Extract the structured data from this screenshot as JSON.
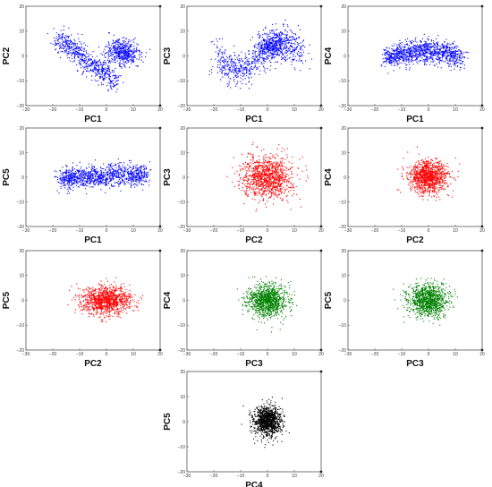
{
  "chart_data": [
    {
      "type": "scatter",
      "xlabel": "PC1",
      "ylabel": "PC2",
      "color": "#0000ff",
      "shape": "two-lobe-diagonal",
      "xlim": [
        -30,
        20
      ],
      "ylim": [
        -20,
        20
      ],
      "xticks": [
        -30,
        -20,
        -10,
        0,
        10,
        20
      ],
      "yticks": [
        -20,
        -10,
        0,
        10,
        20
      ],
      "tick_labels_x": [
        "−30",
        "−20",
        "−10",
        "0",
        "10",
        "20"
      ],
      "tick_labels_y": [
        "−20",
        "−10",
        "0",
        "10",
        "20"
      ]
    },
    {
      "type": "scatter",
      "xlabel": "PC1",
      "ylabel": "PC3",
      "color": "#0000ff",
      "shape": "s-curve",
      "xlim": [
        -30,
        20
      ],
      "ylim": [
        -20,
        20
      ],
      "xticks": [
        -30,
        -20,
        -10,
        0,
        10,
        20
      ],
      "yticks": [
        -20,
        -10,
        0,
        10,
        20
      ],
      "tick_labels_x": [
        "−30",
        "−20",
        "−10",
        "0",
        "10",
        "20"
      ],
      "tick_labels_y": [
        "−20",
        "−10",
        "0",
        "10",
        "20"
      ]
    },
    {
      "type": "scatter",
      "xlabel": "PC1",
      "ylabel": "PC4",
      "color": "#0000ff",
      "shape": "arch",
      "xlim": [
        -30,
        20
      ],
      "ylim": [
        -20,
        20
      ],
      "xticks": [
        -30,
        -20,
        -10,
        0,
        10,
        20
      ],
      "yticks": [
        -20,
        -10,
        0,
        10,
        20
      ],
      "tick_labels_x": [
        "−30",
        "−20",
        "−10",
        "0",
        "10",
        "20"
      ],
      "tick_labels_y": [
        "−20",
        "−10",
        "0",
        "10",
        "20"
      ]
    },
    {
      "type": "scatter",
      "xlabel": "PC1",
      "ylabel": "PC5",
      "color": "#0000ff",
      "shape": "band",
      "xlim": [
        -30,
        20
      ],
      "ylim": [
        -20,
        20
      ],
      "xticks": [
        -30,
        -20,
        -10,
        0,
        10,
        20
      ],
      "yticks": [
        -20,
        -10,
        0,
        10,
        20
      ],
      "tick_labels_x": [
        "−30",
        "−20",
        "−10",
        "0",
        "10",
        "20"
      ],
      "tick_labels_y": [
        "−20",
        "−10",
        "0",
        "10",
        "20"
      ]
    },
    {
      "type": "scatter",
      "xlabel": "PC2",
      "ylabel": "PC3",
      "color": "#ff0000",
      "shape": "blob-large",
      "xlim": [
        -30,
        20
      ],
      "ylim": [
        -20,
        20
      ],
      "xticks": [
        -30,
        -20,
        -10,
        0,
        10,
        20
      ],
      "yticks": [
        -20,
        -10,
        0,
        10,
        20
      ],
      "tick_labels_x": [
        "−30",
        "−20",
        "−10",
        "0",
        "10",
        "20"
      ],
      "tick_labels_y": [
        "−20",
        "−10",
        "0",
        "10",
        "20"
      ]
    },
    {
      "type": "scatter",
      "xlabel": "PC2",
      "ylabel": "PC4",
      "color": "#ff0000",
      "shape": "blob-medium",
      "xlim": [
        -30,
        20
      ],
      "ylim": [
        -20,
        20
      ],
      "xticks": [
        -30,
        -20,
        -10,
        0,
        10,
        20
      ],
      "yticks": [
        -20,
        -10,
        0,
        10,
        20
      ],
      "tick_labels_x": [
        "−30",
        "−20",
        "−10",
        "0",
        "10",
        "20"
      ],
      "tick_labels_y": [
        "−20",
        "−10",
        "0",
        "10",
        "20"
      ]
    },
    {
      "type": "scatter",
      "xlabel": "PC2",
      "ylabel": "PC5",
      "color": "#ff0000",
      "shape": "blob-wide",
      "xlim": [
        -30,
        20
      ],
      "ylim": [
        -20,
        20
      ],
      "xticks": [
        -30,
        -20,
        -10,
        0,
        10,
        20
      ],
      "yticks": [
        -20,
        -10,
        0,
        10,
        20
      ],
      "tick_labels_x": [
        "−30",
        "−20",
        "−10",
        "0",
        "10",
        "20"
      ],
      "tick_labels_y": [
        "−20",
        "−10",
        "0",
        "10",
        "20"
      ]
    },
    {
      "type": "scatter",
      "xlabel": "PC3",
      "ylabel": "PC4",
      "color": "#008000",
      "shape": "blob-medium",
      "xlim": [
        -30,
        20
      ],
      "ylim": [
        -20,
        20
      ],
      "xticks": [
        -30,
        -20,
        -10,
        0,
        10,
        20
      ],
      "yticks": [
        -20,
        -10,
        0,
        10,
        20
      ],
      "tick_labels_x": [
        "−30",
        "−20",
        "−10",
        "0",
        "10",
        "20"
      ],
      "tick_labels_y": [
        "−20",
        "−10",
        "0",
        "10",
        "20"
      ]
    },
    {
      "type": "scatter",
      "xlabel": "PC3",
      "ylabel": "PC5",
      "color": "#008000",
      "shape": "blob-medium",
      "xlim": [
        -30,
        20
      ],
      "ylim": [
        -20,
        20
      ],
      "xticks": [
        -30,
        -20,
        -10,
        0,
        10,
        20
      ],
      "yticks": [
        -20,
        -10,
        0,
        10,
        20
      ],
      "tick_labels_x": [
        "−30",
        "−20",
        "−10",
        "0",
        "10",
        "20"
      ],
      "tick_labels_y": [
        "−20",
        "−10",
        "0",
        "10",
        "20"
      ]
    },
    {
      "type": "scatter",
      "xlabel": "PC4",
      "ylabel": "PC5",
      "color": "#000000",
      "shape": "blob-small",
      "xlim": [
        -30,
        20
      ],
      "ylim": [
        -20,
        20
      ],
      "xticks": [
        -30,
        -20,
        -10,
        0,
        10,
        20
      ],
      "yticks": [
        -20,
        -10,
        0,
        10,
        20
      ],
      "tick_labels_x": [
        "−30",
        "−20",
        "−10",
        "0",
        "10",
        "20"
      ],
      "tick_labels_y": [
        "−20",
        "−10",
        "0",
        "10",
        "20"
      ]
    }
  ]
}
